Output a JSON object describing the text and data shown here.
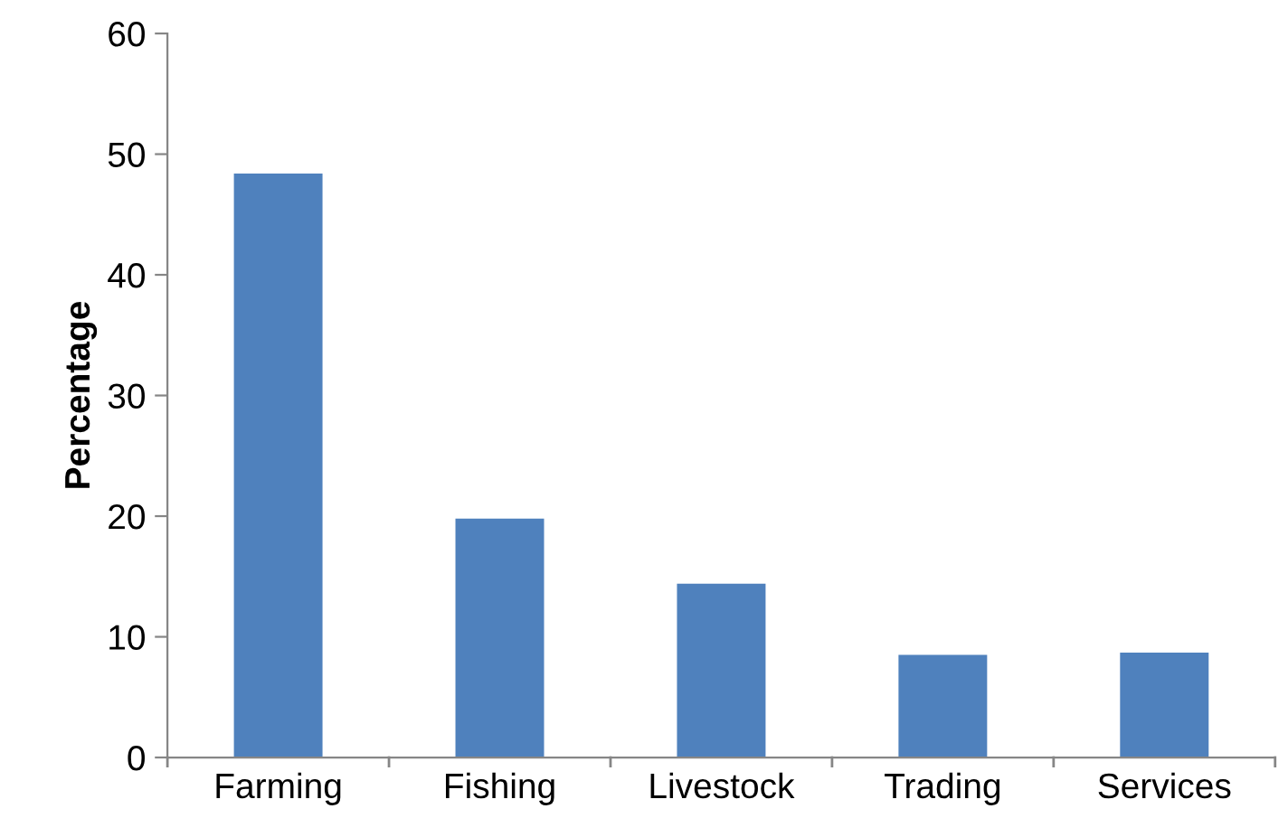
{
  "chart_data": {
    "type": "bar",
    "ylabel": "Percentage",
    "categories": [
      "Farming",
      "Fishing",
      "Livestock",
      "Trading",
      "Services"
    ],
    "values": [
      48.4,
      19.8,
      14.4,
      8.5,
      8.7
    ],
    "color": "#4f81bd",
    "ylim": [
      0,
      60
    ],
    "yticks": [
      0,
      10,
      20,
      30,
      40,
      50,
      60
    ],
    "grid": false,
    "legend": false
  }
}
